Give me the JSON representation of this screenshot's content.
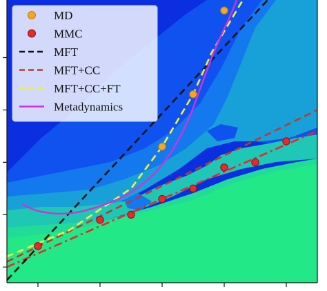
{
  "chart_data": {
    "type": "scatter",
    "title": "",
    "xlabel": "",
    "ylabel": "",
    "xlim": [
      0,
      5
    ],
    "ylim": [
      0,
      5.4
    ],
    "grid": false,
    "legend_position": "top-left",
    "background": {
      "kind": "filled-contour",
      "colors": [
        "#0a2ee0",
        "#0f52f0",
        "#1478ee",
        "#18a0d8",
        "#1ec8b4",
        "#20dc98",
        "#22e888"
      ]
    },
    "x_tick_positions": [
      0.5,
      1.5,
      2.5,
      3.5,
      4.5
    ],
    "y_tick_positions": [
      0.3,
      1.3,
      2.3,
      3.3,
      4.3
    ],
    "series": [
      {
        "name": "MD",
        "kind": "markers",
        "color": "#f5a623",
        "x": [
          2.5,
          3.0,
          3.5
        ],
        "y": [
          2.6,
          3.6,
          5.2
        ]
      },
      {
        "name": "MMC",
        "kind": "markers",
        "color": "#e8282b",
        "x": [
          0.5,
          1.5,
          2.0,
          2.5,
          3.0,
          3.5,
          4.0,
          4.5
        ],
        "y": [
          0.7,
          1.2,
          1.3,
          1.6,
          1.8,
          2.2,
          2.3,
          2.7
        ]
      },
      {
        "name": "MFT",
        "kind": "line",
        "style": "dashed",
        "color": "#111111",
        "x": [
          0,
          4.2
        ],
        "y": [
          0.05,
          5.4
        ]
      },
      {
        "name": "MFT+CC",
        "kind": "line",
        "style": "dashed",
        "color": "#c0392b",
        "x": [
          0,
          5
        ],
        "y": [
          0.4,
          3.3
        ]
      },
      {
        "name": "MFT+CC+FT",
        "kind": "line",
        "style": "dashed",
        "color": "#f5f03a",
        "x": [
          0,
          1.0,
          2.0,
          2.5,
          3.0,
          3.3,
          3.6,
          3.8
        ],
        "y": [
          0.5,
          1.0,
          1.8,
          2.6,
          3.6,
          4.4,
          5.0,
          5.4
        ]
      },
      {
        "name": "",
        "kind": "line",
        "style": "dashdot",
        "color": "#e8282b",
        "x": [
          0,
          5
        ],
        "y": [
          0.3,
          2.9
        ]
      },
      {
        "name": "Metadynamics",
        "kind": "line",
        "style": "solid",
        "color": "#cc33dd",
        "x": [
          0.25,
          0.5,
          1.0,
          1.5,
          2.0,
          2.5,
          2.9,
          3.2,
          3.4,
          3.6,
          3.7
        ],
        "y": [
          1.5,
          1.35,
          1.3,
          1.45,
          1.7,
          2.2,
          3.0,
          4.0,
          4.6,
          5.1,
          5.4
        ]
      }
    ],
    "legend": [
      {
        "label": "MD",
        "symbol": "marker",
        "color": "#f5a623"
      },
      {
        "label": "MMC",
        "symbol": "marker",
        "color": "#e8282b"
      },
      {
        "label": "MFT",
        "symbol": "dashed",
        "color": "#111111"
      },
      {
        "label": "MFT+CC",
        "symbol": "dashed",
        "color": "#c0392b"
      },
      {
        "label": "MFT+CC+FT",
        "symbol": "dashed",
        "color": "#f5f03a"
      },
      {
        "label": "Metadynamics",
        "symbol": "solid",
        "color": "#cc33dd"
      }
    ]
  }
}
